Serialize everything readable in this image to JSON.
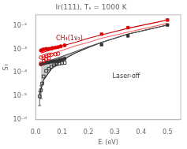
{
  "chart_data": {
    "type": "scatter",
    "title": "Ir(111), Tₛ = 1000 K",
    "xlabel": "Eᵢ (eV)",
    "ylabel": "S₀",
    "log": "y",
    "grid": false,
    "xlim": [
      0.0,
      0.55
    ],
    "xticks": [
      {
        "value": 0.0,
        "label": "0.0"
      },
      0.1,
      0.2,
      0.3,
      0.4,
      0.5
    ],
    "ylim": [
      1e-06,
      0.03
    ],
    "yticks": [
      {
        "value": 1e-06,
        "label": "10⁻⁶"
      },
      {
        "value": 1e-05,
        "label": "10⁻⁵"
      },
      {
        "value": 0.0001,
        "label": "10⁻⁴"
      },
      {
        "value": 0.001,
        "label": "10⁻³"
      },
      {
        "value": 0.01,
        "label": "10⁻²"
      }
    ],
    "series": [
      {
        "type": "line",
        "color": "#cc0000",
        "x": [
          0.02,
          0.05,
          0.1,
          0.15,
          0.2,
          0.25,
          0.35,
          0.5
        ],
        "values": [
          0.0007,
          0.0009,
          0.0014,
          0.002,
          0.003,
          0.0042,
          0.008,
          0.018
        ]
      },
      {
        "type": "line",
        "color": "#ff6060",
        "x": [
          0.02,
          0.05,
          0.1,
          0.15,
          0.2,
          0.25,
          0.35,
          0.5
        ],
        "values": [
          0.00045,
          0.0006,
          0.0009,
          0.0014,
          0.002,
          0.003,
          0.0055,
          0.013
        ]
      },
      {
        "type": "area",
        "color": "#555555",
        "x": [
          0.02,
          0.05,
          0.1,
          0.15,
          0.2,
          0.25,
          0.35,
          0.5
        ],
        "values": [
          0.00025,
          0.00032,
          0.0005,
          0.0008,
          0.0013,
          0.002,
          0.0045,
          0.011
        ]
      },
      {
        "type": "line",
        "color": "#111111",
        "x": [
          0.015,
          0.03,
          0.06,
          0.1,
          0.15,
          0.2,
          0.25,
          0.35,
          0.5
        ],
        "values": [
          1.2e-05,
          5e-05,
          0.00015,
          0.00035,
          0.0007,
          0.0012,
          0.002,
          0.0045,
          0.011
        ]
      },
      {
        "type": "scatter",
        "color": "#dd0000",
        "marker": "circle",
        "x": [
          0.02,
          0.025,
          0.03,
          0.04,
          0.05,
          0.06,
          0.065,
          0.075,
          0.085,
          0.095,
          0.11
        ],
        "values": [
          0.0009,
          0.00095,
          0.001,
          0.00105,
          0.00105,
          0.0011,
          0.00115,
          0.0012,
          0.00125,
          0.00135,
          0.0015
        ]
      },
      {
        "type": "scatter",
        "color": "#dd0000",
        "marker": "square",
        "x": [
          0.25,
          0.35,
          0.5
        ],
        "values": [
          0.0045,
          0.0085,
          0.018
        ]
      },
      {
        "type": "scatter",
        "color": "#dd0000",
        "marker": "circle_open",
        "x": [
          0.02,
          0.03,
          0.04,
          0.05,
          0.06,
          0.075,
          0.085
        ],
        "values": [
          0.00045,
          0.0005,
          0.00055,
          0.00058,
          0.0006,
          0.00062,
          0.00065
        ]
      },
      {
        "type": "scatter",
        "color": "#dd0000",
        "marker": "square_open",
        "x": [
          0.02,
          0.03,
          0.04,
          0.05
        ],
        "values": [
          0.00025,
          0.00032,
          0.00038,
          0.00042
        ]
      },
      {
        "type": "scatter",
        "color": "#333333",
        "marker": "circle",
        "x": [
          0.02,
          0.03,
          0.04,
          0.05,
          0.06,
          0.07,
          0.08,
          0.09,
          0.1,
          0.11
        ],
        "values": [
          0.00023,
          0.00025,
          0.00027,
          0.00028,
          0.0003,
          0.00031,
          0.00032,
          0.00035,
          0.00037,
          0.0004
        ]
      },
      {
        "type": "scatter",
        "color": "#333333",
        "marker": "square",
        "x": [
          0.25,
          0.35,
          0.5
        ],
        "values": [
          0.0016,
          0.0038,
          0.011
        ]
      },
      {
        "type": "scatter",
        "color": "#333333",
        "marker": "square_open",
        "x": [
          0.015,
          0.02,
          0.025,
          0.03,
          0.04,
          0.05,
          0.06,
          0.07,
          0.08,
          0.09,
          0.1,
          0.11
        ],
        "values": [
          1e-05,
          1.8e-05,
          3.5e-05,
          7e-05,
          0.00012,
          0.00015,
          0.00018,
          0.00021,
          0.00023,
          0.00025,
          0.00026,
          0.00027
        ],
        "error_low": [
          6e-06,
          1e-05,
          null,
          null,
          null,
          null,
          null,
          null,
          null,
          null,
          null,
          null
        ],
        "error_high": [
          6e-06,
          1e-05,
          null,
          null,
          null,
          null,
          null,
          null,
          null,
          null,
          null,
          null
        ]
      }
    ],
    "annotations": [
      {
        "text": "CH₄(1ν₃)",
        "color": "#cc0000"
      },
      {
        "text": "Laser-off",
        "color": "#333333"
      }
    ]
  }
}
